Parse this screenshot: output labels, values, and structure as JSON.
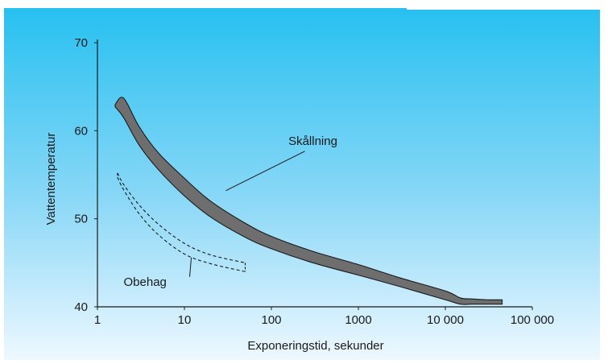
{
  "chart_data": {
    "type": "area",
    "title": "",
    "xlabel": "Exponeringstid, sekunder",
    "ylabel": "Vattentemperatur",
    "x_scale": "log",
    "xlim": [
      1,
      100000
    ],
    "ylim": [
      40,
      70
    ],
    "x_ticks": [
      1,
      10,
      100,
      1000,
      10000,
      100000
    ],
    "x_tick_labels": [
      "1",
      "10",
      "100",
      "1000",
      "10 000",
      "100 000"
    ],
    "y_ticks": [
      40,
      50,
      60,
      70
    ],
    "y_tick_labels": [
      "40",
      "50",
      "60",
      "70"
    ],
    "grid": false,
    "series": [
      {
        "name": "Skållning",
        "style": "filled-band",
        "x": [
          1.6,
          2,
          3,
          5,
          10,
          20,
          50,
          100,
          300,
          1000,
          3000,
          10000,
          15000,
          20000,
          30000,
          45000
        ],
        "y_upper": [
          63.0,
          63.7,
          60.5,
          57.5,
          54.6,
          52.0,
          49.5,
          48.0,
          46.3,
          44.8,
          43.3,
          41.8,
          41.0,
          40.9,
          40.8,
          40.8
        ],
        "y_lower": [
          62.7,
          61.5,
          58.4,
          55.6,
          52.6,
          50.2,
          47.9,
          46.6,
          45.0,
          43.6,
          42.3,
          40.8,
          40.3,
          40.3,
          40.3,
          40.3
        ]
      },
      {
        "name": "Obehag",
        "style": "dashed-band",
        "x": [
          1.7,
          2,
          3,
          5,
          10,
          20,
          50
        ],
        "y_upper": [
          55.2,
          53.9,
          51.6,
          49.4,
          47.2,
          45.9,
          45.0
        ],
        "y_lower": [
          54.7,
          53.3,
          50.6,
          48.2,
          46.0,
          44.9,
          44.0
        ]
      }
    ],
    "annotations": [
      {
        "text": "Skållning",
        "x": 300,
        "y": 58.4,
        "points_to": {
          "x": 30,
          "y": 53.2
        }
      },
      {
        "text": "Obehag",
        "x": 2,
        "y": 42.4,
        "points_to": {
          "x": 12,
          "y": 45.6
        }
      }
    ],
    "colors": {
      "band_fill": "#6e6e6e",
      "band_stroke": "#1a1a1a",
      "dashed_stroke": "#1a1a1a",
      "axis": "#1a1a1a",
      "background_top": "#27c0f0",
      "background_bottom": "#eef8ff"
    }
  }
}
